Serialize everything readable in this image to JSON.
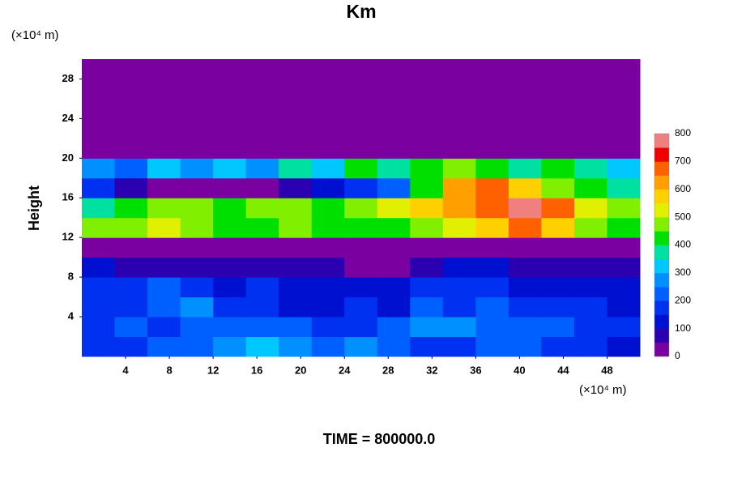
{
  "chart_data": {
    "type": "heatmap",
    "title": "Km",
    "ylabel": "Height",
    "x_unit": "(×10⁴ m)",
    "y_unit": "(×10⁴ m)",
    "footer": "TIME = 800000.0",
    "xlim": [
      0,
      51
    ],
    "ylim": [
      0,
      30
    ],
    "xticks": [
      4,
      8,
      12,
      16,
      20,
      24,
      28,
      32,
      36,
      40,
      44,
      48
    ],
    "yticks": [
      4,
      8,
      12,
      16,
      20,
      24,
      28
    ],
    "x_edges": [
      0,
      3,
      6,
      9,
      12,
      15,
      18,
      21,
      24,
      27,
      30,
      33,
      36,
      39,
      42,
      45,
      48,
      51
    ],
    "y_edges": [
      0,
      2,
      4,
      6,
      8,
      10,
      12,
      14,
      16,
      18,
      20,
      22,
      24,
      26,
      28,
      30
    ],
    "z": [
      [
        150,
        150,
        200,
        200,
        250,
        300,
        250,
        200,
        250,
        200,
        150,
        150,
        200,
        200,
        150,
        150,
        100
      ],
      [
        150,
        200,
        150,
        200,
        200,
        200,
        200,
        150,
        150,
        200,
        250,
        250,
        200,
        200,
        200,
        150,
        150
      ],
      [
        150,
        150,
        200,
        250,
        150,
        150,
        100,
        100,
        150,
        100,
        200,
        150,
        200,
        150,
        150,
        150,
        100
      ],
      [
        150,
        150,
        200,
        150,
        100,
        150,
        100,
        100,
        100,
        100,
        150,
        150,
        150,
        100,
        100,
        100,
        100
      ],
      [
        100,
        50,
        50,
        50,
        50,
        50,
        50,
        50,
        0,
        0,
        50,
        100,
        100,
        50,
        50,
        50,
        50
      ],
      [
        0,
        0,
        0,
        0,
        0,
        0,
        0,
        0,
        0,
        0,
        0,
        0,
        0,
        0,
        0,
        0,
        0
      ],
      [
        450,
        450,
        500,
        450,
        400,
        400,
        450,
        400,
        400,
        400,
        450,
        500,
        550,
        650,
        550,
        450,
        400
      ],
      [
        350,
        400,
        450,
        450,
        400,
        450,
        450,
        400,
        450,
        500,
        550,
        600,
        650,
        750,
        650,
        500,
        450
      ],
      [
        150,
        50,
        0,
        0,
        0,
        0,
        50,
        100,
        150,
        200,
        400,
        600,
        650,
        550,
        450,
        400,
        350
      ],
      [
        250,
        200,
        300,
        250,
        300,
        250,
        350,
        300,
        400,
        350,
        400,
        450,
        400,
        350,
        400,
        350,
        300
      ],
      [
        0,
        0,
        0,
        0,
        0,
        0,
        0,
        0,
        0,
        0,
        0,
        0,
        0,
        0,
        0,
        0,
        0
      ],
      [
        0,
        0,
        0,
        0,
        0,
        0,
        0,
        0,
        0,
        0,
        0,
        0,
        0,
        0,
        0,
        0,
        0
      ],
      [
        0,
        0,
        0,
        0,
        0,
        0,
        0,
        0,
        0,
        0,
        0,
        0,
        0,
        0,
        0,
        0,
        0
      ],
      [
        0,
        0,
        0,
        0,
        0,
        0,
        0,
        0,
        0,
        0,
        0,
        0,
        0,
        0,
        0,
        0,
        0
      ],
      [
        0,
        0,
        0,
        0,
        0,
        0,
        0,
        0,
        0,
        0,
        0,
        0,
        0,
        0,
        0,
        0,
        0
      ]
    ],
    "levels": [
      0,
      50,
      100,
      150,
      200,
      250,
      300,
      350,
      400,
      450,
      500,
      550,
      600,
      650,
      700,
      750,
      800
    ],
    "colors": [
      "#7a00a0",
      "#2a00b0",
      "#0010d0",
      "#0030f0",
      "#0060ff",
      "#0090ff",
      "#00c8ff",
      "#00e0a0",
      "#00e000",
      "#80f000",
      "#e0f000",
      "#ffd000",
      "#ffa000",
      "#ff6000",
      "#f00000",
      "#f08080"
    ],
    "colorbar_ticks": [
      0,
      100,
      200,
      300,
      400,
      500,
      600,
      700,
      800
    ]
  }
}
